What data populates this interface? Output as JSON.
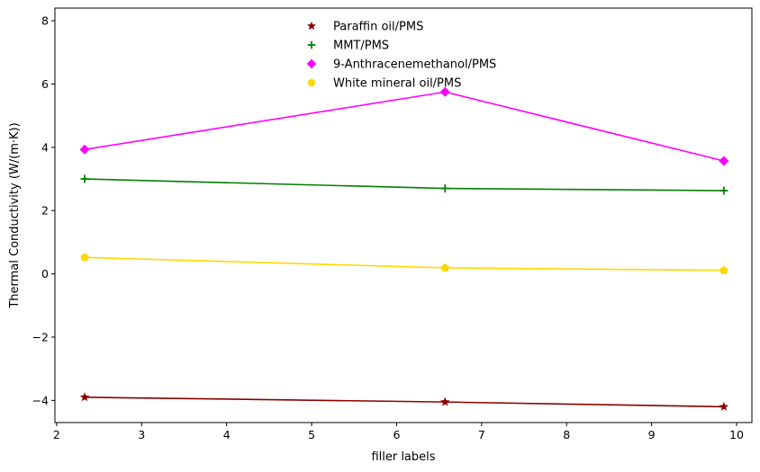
{
  "chart_data": {
    "type": "line",
    "xlabel": "filler labels",
    "ylabel": "Thermal Conductivity (W/(m·K))",
    "xlim": [
      1.98,
      10.18
    ],
    "ylim": [
      -4.7,
      8.4
    ],
    "x_ticks": [
      2,
      3,
      4,
      5,
      6,
      7,
      8,
      9,
      10
    ],
    "x_tick_labels": [
      "2",
      "3",
      "4",
      "5",
      "6",
      "7",
      "8",
      "9",
      "10"
    ],
    "y_ticks": [
      -4,
      -2,
      0,
      2,
      4,
      6,
      8
    ],
    "y_tick_labels": [
      "−4",
      "−2",
      "0",
      "2",
      "4",
      "6",
      "8"
    ],
    "grid": false,
    "legend_position": "top-center",
    "series": [
      {
        "name": "Paraffin oil/PMS",
        "color": "#8b0000",
        "marker": "star",
        "x": [
          2.33,
          6.57,
          9.85
        ],
        "y": [
          -3.9,
          -4.05,
          -4.2
        ]
      },
      {
        "name": "MMT/PMS",
        "color": "#008000",
        "marker": "plus",
        "x": [
          2.33,
          6.57,
          9.85
        ],
        "y": [
          3.0,
          2.7,
          2.63
        ]
      },
      {
        "name": "9-Anthracenemethanol/PMS",
        "color": "#ff00ff",
        "marker": "diamond",
        "x": [
          2.33,
          6.57,
          9.85
        ],
        "y": [
          3.93,
          5.75,
          3.57
        ]
      },
      {
        "name": "White mineral oil/PMS",
        "color": "#ffd700",
        "marker": "pentagon",
        "x": [
          2.33,
          6.57,
          9.85
        ],
        "y": [
          0.52,
          0.19,
          0.11
        ]
      }
    ]
  }
}
